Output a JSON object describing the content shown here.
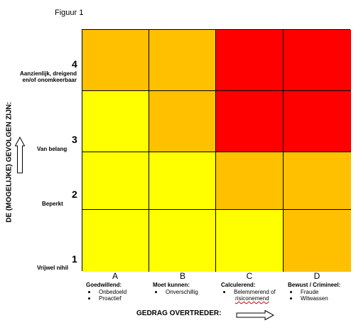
{
  "figure_label": "Figuur 1",
  "y_axis": {
    "title": "DE (MOGELIJKE) GEVOLGEN ZIJN:",
    "levels": [
      {
        "number": "4",
        "text": "Aanzienlijk, dreigend en/of onomkeerbaar"
      },
      {
        "number": "3",
        "text": "Van belang"
      },
      {
        "number": "2",
        "text": "Beperkt"
      },
      {
        "number": "1",
        "text": "Vrijwel nihil"
      }
    ]
  },
  "x_axis": {
    "title": "GEDRAG OVERTREDER:",
    "columns": [
      {
        "letter": "A",
        "title": "Goedwillend:",
        "items": [
          "Onbedoeld",
          "Proactief"
        ]
      },
      {
        "letter": "B",
        "title": "Moet kunnen:",
        "items": [
          "Onverschillig"
        ]
      },
      {
        "letter": "C",
        "title": "Calculerend:",
        "items": [
          "Belemmerend of",
          "risiconemend"
        ]
      },
      {
        "letter": "D",
        "title": "Bewust / Crimineel:",
        "items": [
          "Fraude",
          "Witwassen"
        ]
      }
    ]
  },
  "colors": {
    "red": "#ff0000",
    "orange": "#ffc000",
    "yellow": "#ffff00",
    "grid_line": "#000000"
  },
  "matrix": {
    "rows_top_to_bottom": [
      {
        "level": "4",
        "cells": [
          "orange",
          "orange",
          "red",
          "red"
        ]
      },
      {
        "level": "3",
        "cells": [
          "yellow",
          "orange",
          "red",
          "red"
        ]
      },
      {
        "level": "2",
        "cells": [
          "yellow",
          "yellow",
          "orange",
          "orange"
        ]
      },
      {
        "level": "1",
        "cells": [
          "yellow",
          "yellow",
          "yellow",
          "orange"
        ]
      }
    ]
  },
  "icons": {
    "y_axis_arrow": "arrow-up-outline-icon",
    "x_axis_arrow": "arrow-right-outline-icon"
  }
}
